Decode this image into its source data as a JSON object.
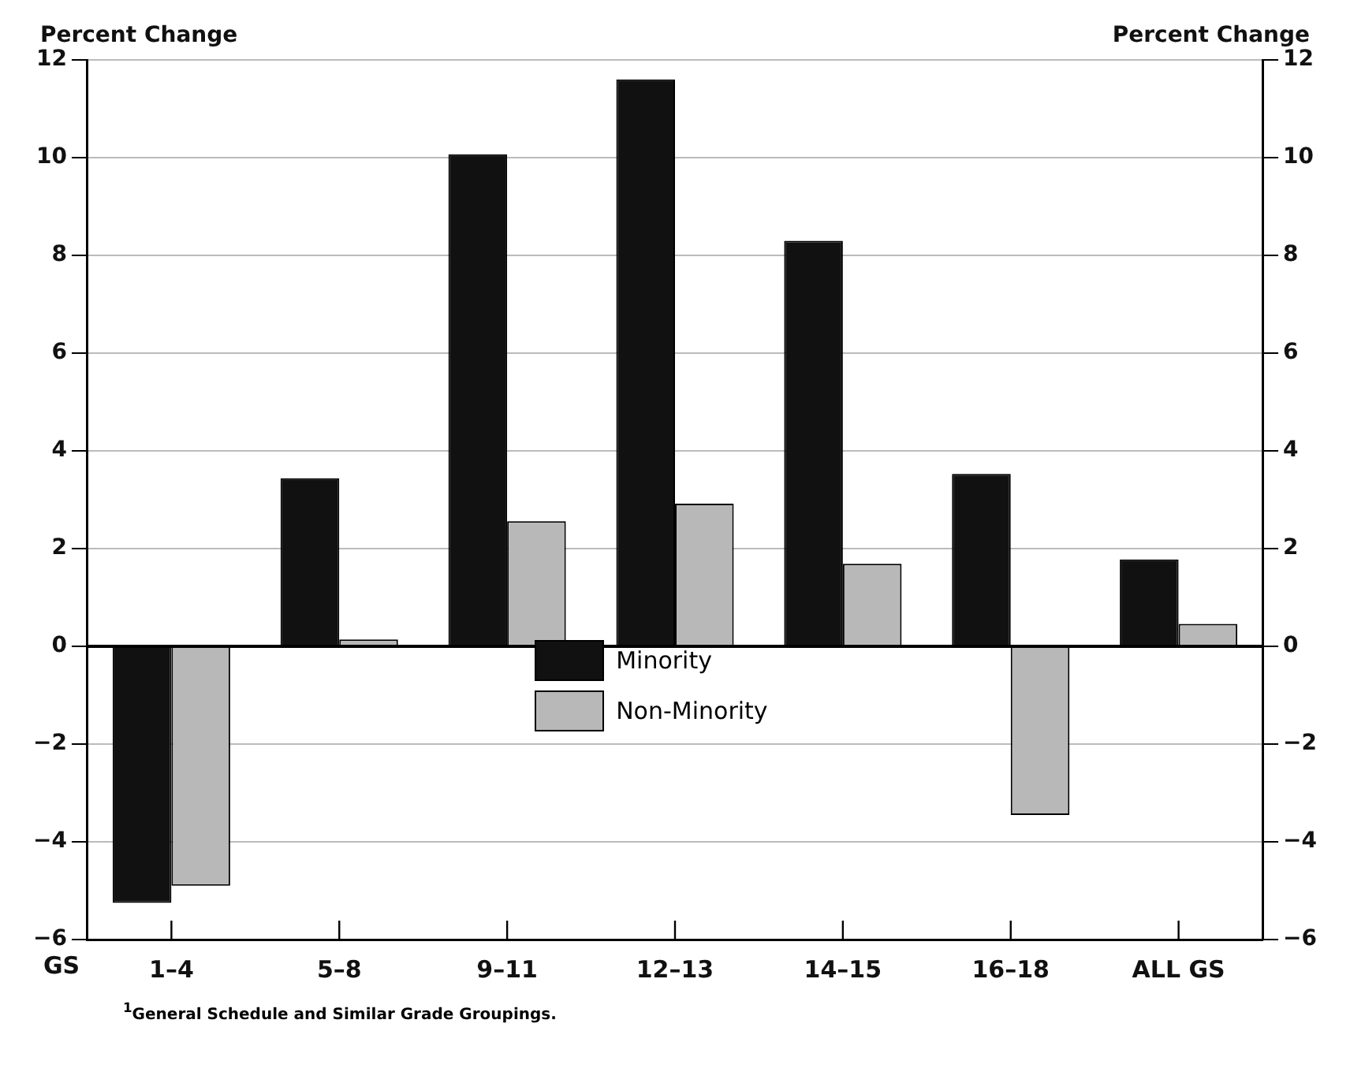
{
  "chart_data": {
    "type": "bar",
    "ylabel": "Percent Change",
    "y2label": "Percent Change",
    "xlabel": "GS",
    "categories": [
      "1–4",
      "5–8",
      "9–11",
      "12–13",
      "14–15",
      "16–18",
      "ALL GS"
    ],
    "series": [
      {
        "name": "Minority",
        "color": "#111111",
        "values": [
          -5.25,
          3.44,
          10.07,
          11.6,
          8.3,
          3.53,
          1.78
        ]
      },
      {
        "name": "Non-Minority",
        "color": "#b8b8b8",
        "values": [
          -4.9,
          0.14,
          2.56,
          2.92,
          1.69,
          -3.45,
          0.46
        ]
      }
    ],
    "ylim": [
      -6,
      12
    ],
    "yticks": [
      -6,
      -4,
      -2,
      0,
      2,
      4,
      6,
      8,
      10,
      12
    ],
    "y2lim": [
      -6,
      12
    ],
    "y2ticks": [
      -6,
      -4,
      -2,
      0,
      2,
      4,
      6,
      8,
      10,
      12
    ],
    "grid": "y",
    "legend": "bottom",
    "annotations": [
      "$^{1}$General Schedule and Similar Grade Groupings."
    ]
  }
}
